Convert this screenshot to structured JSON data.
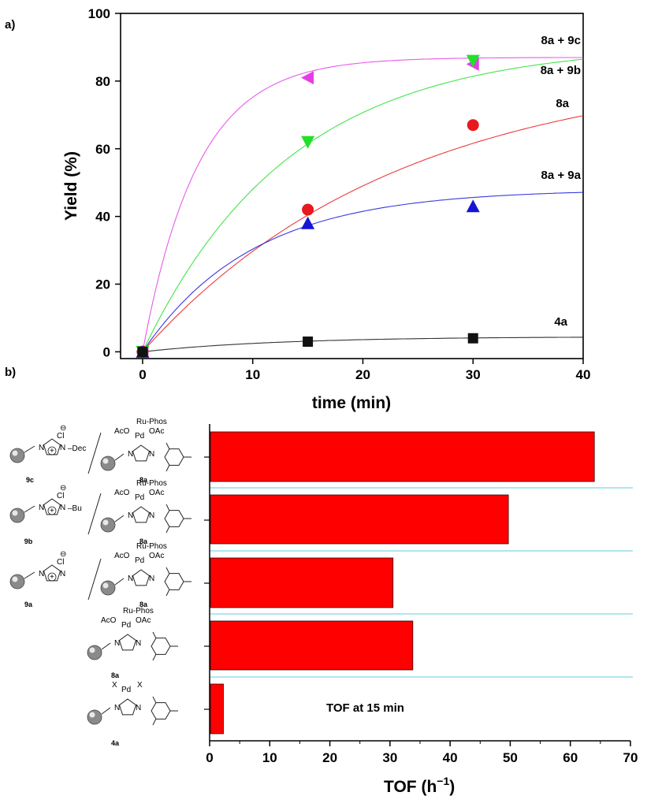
{
  "panel_labels": {
    "a": "a)",
    "b": "b)"
  },
  "chart_data": [
    {
      "type": "scatter",
      "title": "",
      "xlabel": "time (min)",
      "ylabel": "Yield (%)",
      "xlim": [
        -2,
        40
      ],
      "ylim": [
        -2,
        100
      ],
      "xticks": [
        "0",
        "10",
        "20",
        "30",
        "40"
      ],
      "yticks": [
        "0",
        "20",
        "40",
        "60",
        "80",
        "100"
      ],
      "series": [
        {
          "name": "8a + 9c",
          "marker": "triangle-left",
          "color": "#e33ee6",
          "x": [
            0,
            15,
            30
          ],
          "y": [
            0,
            81,
            85
          ],
          "fit_plateau": 87,
          "fit_k": 0.2
        },
        {
          "name": "8a + 9b",
          "marker": "triangle-down",
          "color": "#22e02a",
          "x": [
            0,
            15,
            30
          ],
          "y": [
            0,
            62,
            86
          ],
          "fit_plateau": 91,
          "fit_k": 0.075
        },
        {
          "name": "8a",
          "marker": "circle",
          "color": "#e8191e",
          "x": [
            0,
            15,
            30
          ],
          "y": [
            0,
            42,
            67
          ],
          "fit_plateau": 85,
          "fit_k": 0.043
        },
        {
          "name": "8a + 9a",
          "marker": "triangle-up",
          "color": "#1515d8",
          "x": [
            0,
            15,
            30
          ],
          "y": [
            0,
            38,
            43
          ],
          "fit_plateau": 48,
          "fit_k": 0.1
        },
        {
          "name": "4a",
          "marker": "square",
          "color": "#111111",
          "x": [
            0,
            15,
            30
          ],
          "y": [
            0,
            3,
            4
          ],
          "fit_plateau": 4.5,
          "fit_k": 0.08
        }
      ]
    },
    {
      "type": "bar",
      "orientation": "horizontal",
      "title": "",
      "annotation": "TOF at 15 min",
      "xlabel": "TOF (h",
      "xlabel_sup": "−1",
      "xlabel_tail": ")",
      "xlim": [
        0,
        70
      ],
      "xticks": [
        "0",
        "10",
        "20",
        "30",
        "40",
        "50",
        "60",
        "70"
      ],
      "bar_color": "#ff0000",
      "categories": [
        "8a + 9c",
        "8a + 9b",
        "8a + 9a",
        "8a",
        "4a"
      ],
      "values": [
        64,
        49.7,
        30.5,
        33.8,
        2.3
      ]
    }
  ],
  "structures": {
    "ru_phos": "Ru-Phos",
    "pd": "Pd",
    "oac_left": "AcO",
    "oac_right": "OAc",
    "halide": "Cl",
    "minus": "⊖",
    "plus": "+",
    "x": "X",
    "n": "N",
    "dec": "–Dec",
    "bu": "–Bu",
    "labels": [
      "9c",
      "8a",
      "9b",
      "8a",
      "9a",
      "8a",
      "8a",
      "4a"
    ]
  }
}
